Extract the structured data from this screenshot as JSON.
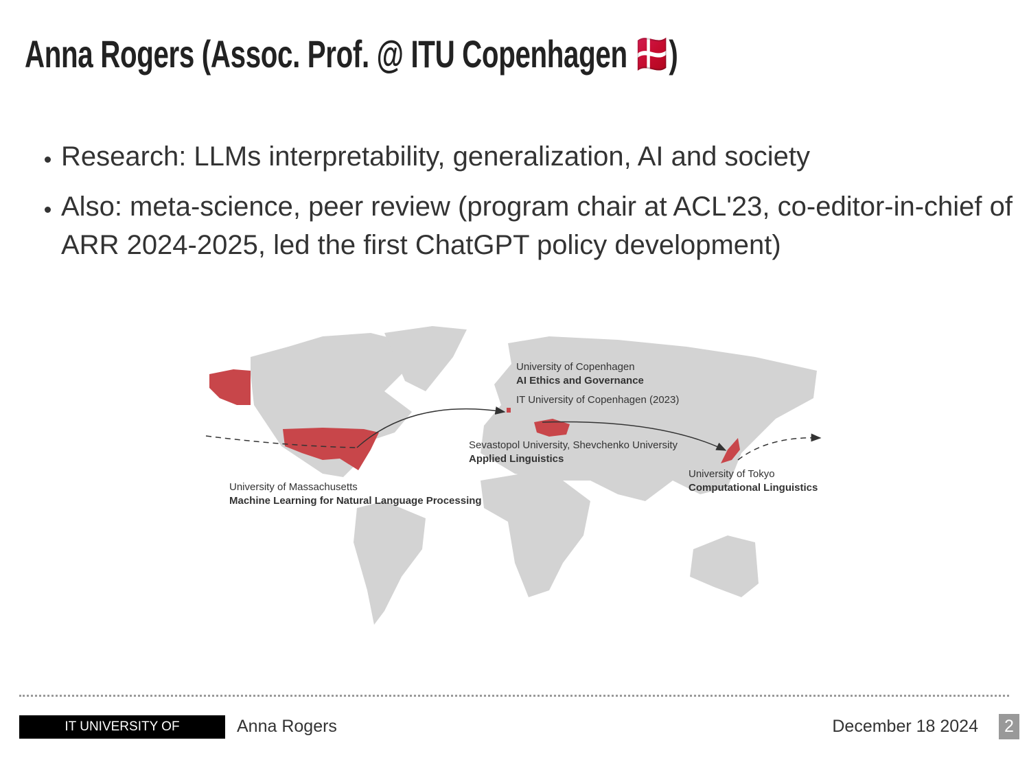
{
  "header": {
    "title": "Anna Rogers (Assoc. Prof. @ ITU Copenhagen 🇩🇰)"
  },
  "bullets": [
    "Research: LLMs interpretability, generalization, AI and society",
    "Also: meta-science, peer review (program chair at ACL'23, co-editor-in-chief of ARR 2024-2025, led the first ChatGPT policy development)"
  ],
  "map": {
    "labels": [
      {
        "institution": "University of Copenhagen",
        "field": "AI Ethics and Governance"
      },
      {
        "institution": "IT University of Copenhagen (2023)"
      },
      {
        "institution": "Sevastopol University, Shevchenko University",
        "field": "Applied Linguistics"
      },
      {
        "institution": "University of Massachusetts",
        "field": "Machine Learning for Natural Language Processing"
      },
      {
        "institution": "University of Tokyo",
        "field": "Computational Linguistics"
      }
    ]
  },
  "footer": {
    "logo": "IT UNIVERSITY OF COPENHAGEN",
    "author": "Anna Rogers",
    "date": "December 18 2024",
    "page": 2
  }
}
